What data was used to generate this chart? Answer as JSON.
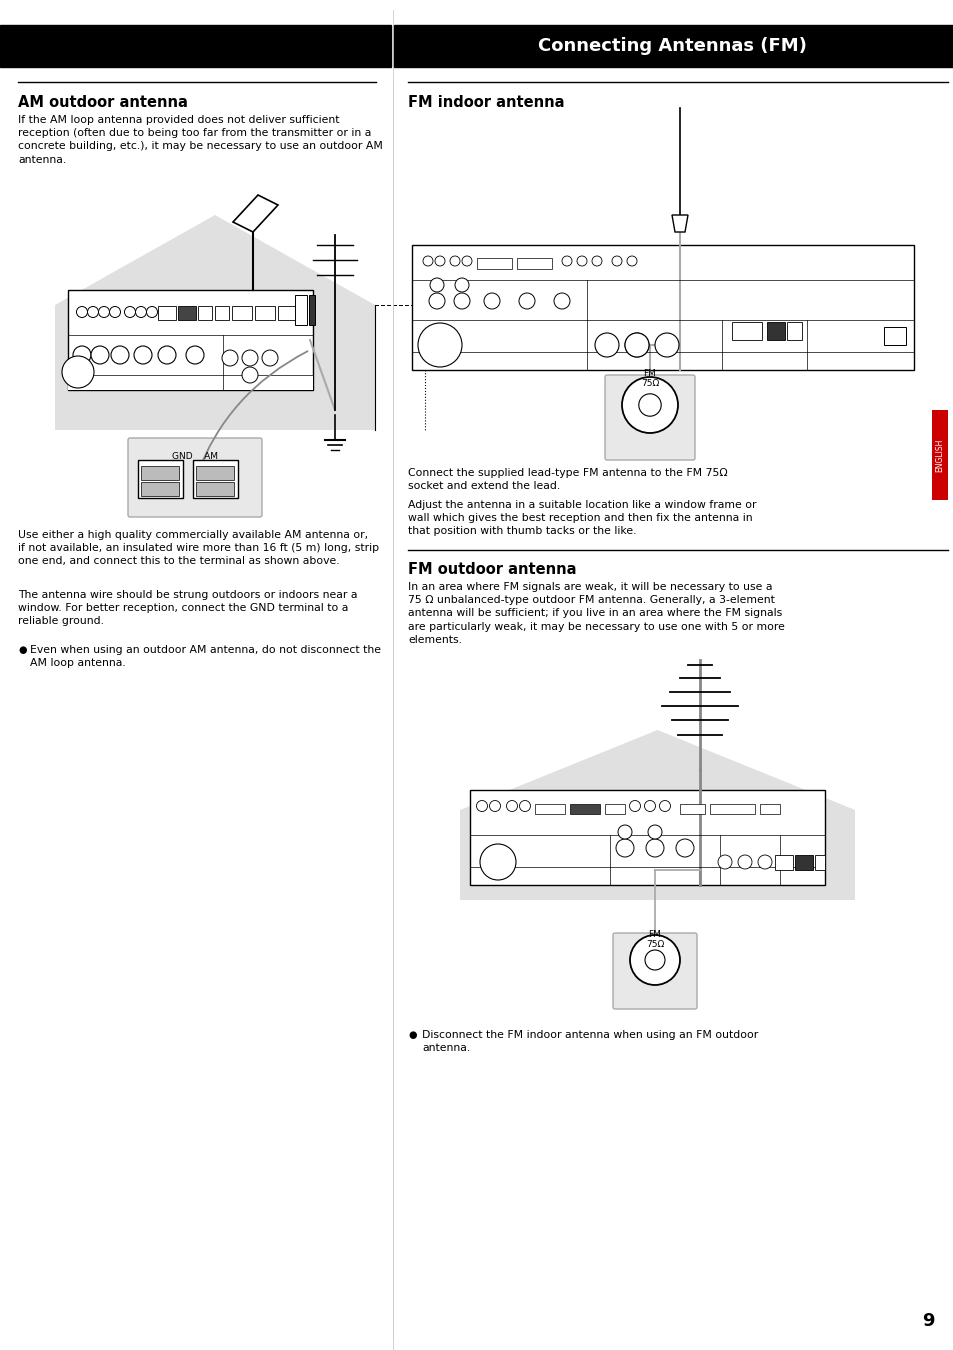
{
  "title": "Connecting Antennas (FM)",
  "page_number": "9",
  "bg_color": "#ffffff",
  "header_bg": "#000000",
  "header_text_color": "#ffffff",
  "header_fontsize": 13,
  "section_left_title": "AM outdoor antenna",
  "section_fm_indoor_title": "FM indoor antenna",
  "section_fm_outdoor_title": "FM outdoor antenna",
  "am_outdoor_text1": "If the AM loop antenna provided does not deliver sufficient\nreception (often due to being too far from the transmitter or in a\nconcrete building, etc.), it may be necessary to use an outdoor AM\nantenna.",
  "am_outdoor_text2": "Use either a high quality commercially available AM antenna or,\nif not available, an insulated wire more than 16 ft (5 m) long, strip\none end, and connect this to the terminal as shown above.",
  "am_outdoor_text3": "The antenna wire should be strung outdoors or indoors near a\nwindow. For better reception, connect the GND terminal to a\nreliable ground.",
  "am_outdoor_bullet": "Even when using an outdoor AM antenna, do not disconnect the\nAM loop antenna.",
  "fm_indoor_text1": "Connect the supplied lead-type FM antenna to the FM 75Ω\nsocket and extend the lead.",
  "fm_indoor_text2": "Adjust the antenna in a suitable location like a window frame or\nwall which gives the best reception and then fix the antenna in\nthat position with thumb tacks or the like.",
  "fm_outdoor_text1": "In an area where FM signals are weak, it will be necessary to use a\n75 Ω unbalanced-type outdoor FM antenna. Generally, a 3-element\nantenna will be sufficient; if you live in an area where the FM signals\nare particularly weak, it may be necessary to use one with 5 or more\nelements.",
  "fm_outdoor_bullet": "Disconnect the FM indoor antenna when using an FM outdoor\nantenna.",
  "body_fontsize": 7.8,
  "section_fontsize": 10.5,
  "diagram_bg": "#e0e0e0",
  "english_tab_color": "#cc0000",
  "english_tab_text": "ENGLISH"
}
